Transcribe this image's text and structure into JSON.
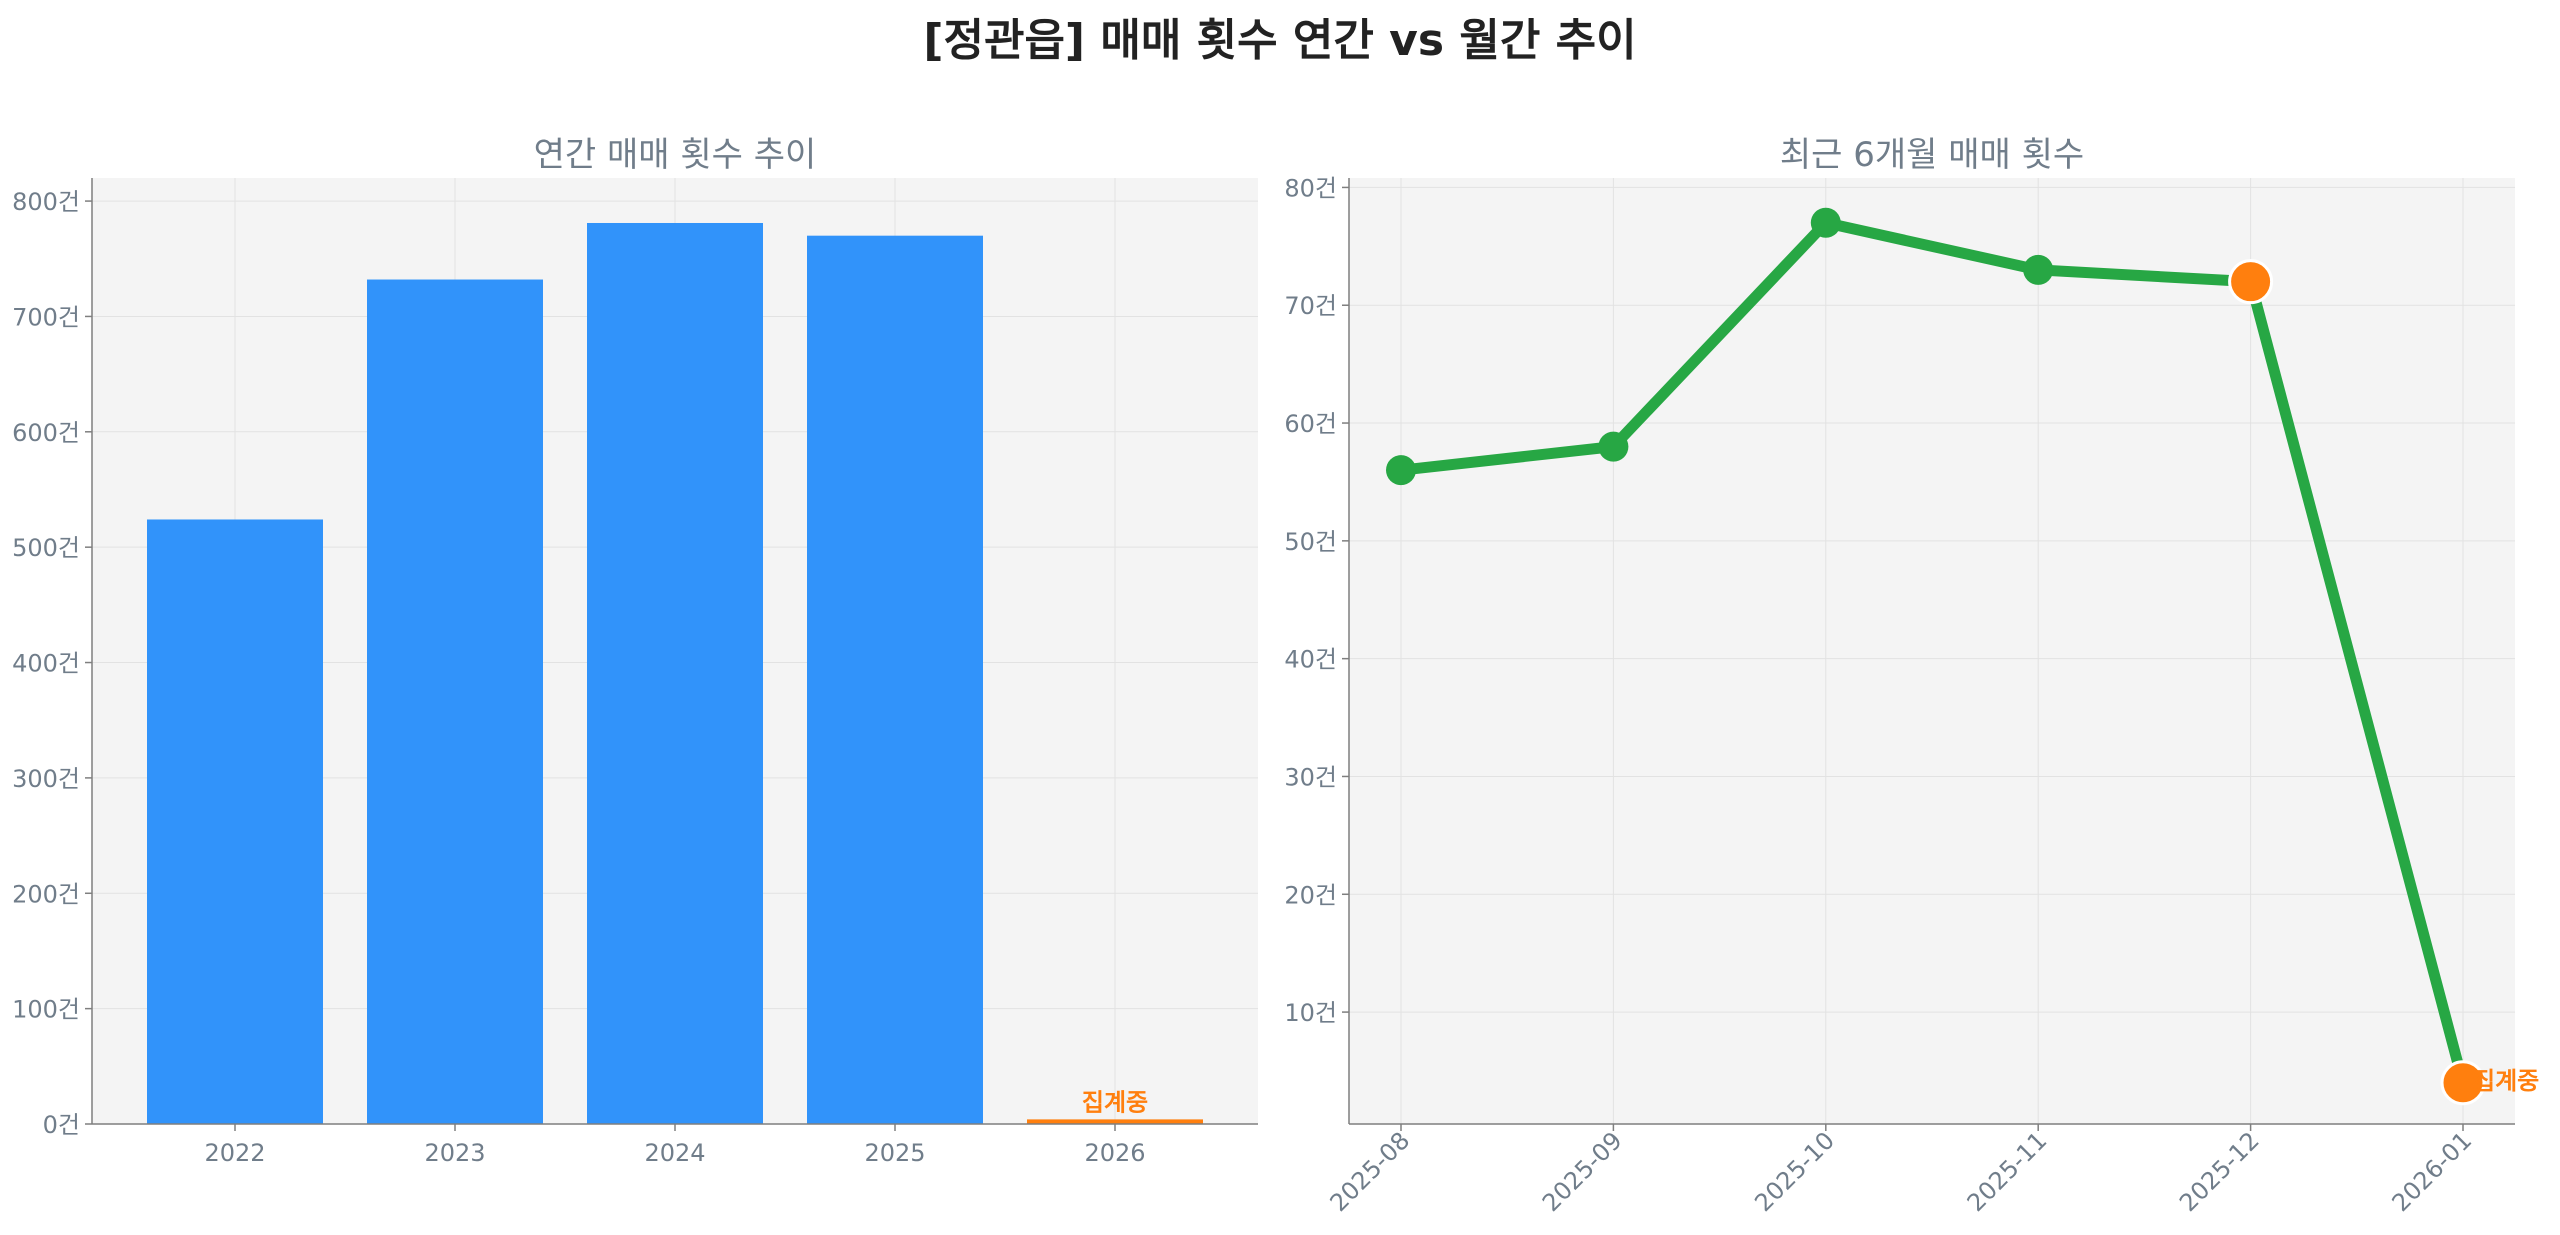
{
  "title": "[정관읍] 매매 횟수 연간 vs 월간 추이",
  "colors": {
    "bar": "#3193fa",
    "pending": "#ff7f0e",
    "line": "#27a744",
    "axis_text": "#707d8a",
    "panel_bg": "#f4f4f4",
    "grid": "#e2e2e2"
  },
  "chart_data": [
    {
      "type": "bar",
      "title": "연간 매매 횟수 추이",
      "categories": [
        "2022",
        "2023",
        "2024",
        "2025",
        "2026"
      ],
      "values": [
        524,
        732,
        781,
        770,
        4
      ],
      "pending_index": 4,
      "annotation": "집계중",
      "ylim": [
        0,
        820
      ],
      "yticks": [
        0,
        100,
        200,
        300,
        400,
        500,
        600,
        700,
        800
      ],
      "y_unit": "건",
      "grid": true
    },
    {
      "type": "line",
      "title": "최근 6개월 매매 횟수",
      "categories": [
        "2025-08",
        "2025-09",
        "2025-10",
        "2025-11",
        "2025-12",
        "2026-01"
      ],
      "values": [
        56,
        58,
        77,
        73,
        72,
        4
      ],
      "highlight_indices": [
        4,
        5
      ],
      "annotation": "집계중",
      "annotation_index": 5,
      "ylim": [
        0.5,
        80.8
      ],
      "yticks": [
        10,
        20,
        30,
        40,
        50,
        60,
        70,
        80
      ],
      "y_unit": "건",
      "grid": true
    }
  ]
}
